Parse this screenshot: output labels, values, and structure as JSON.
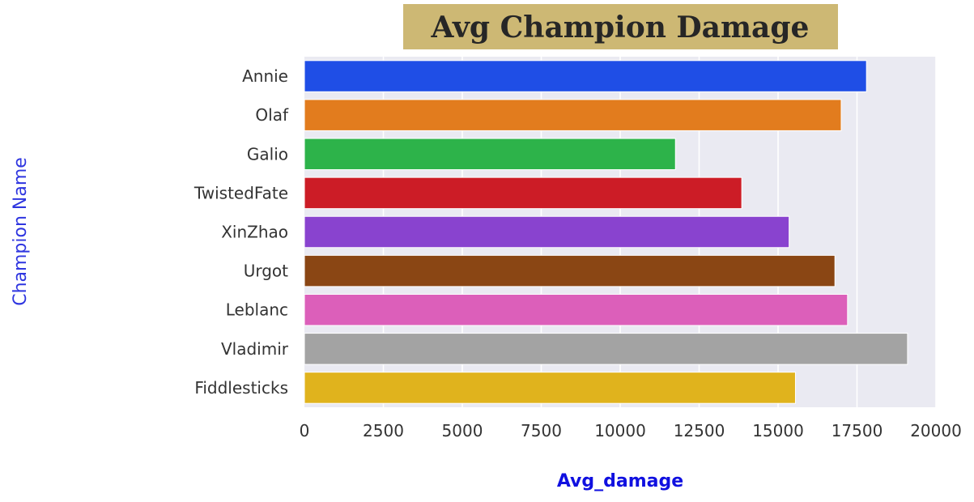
{
  "chart_data": {
    "type": "bar",
    "orientation": "horizontal",
    "title": "Avg Champion Damage",
    "xlabel": "Avg_damage",
    "ylabel": "Champion Name",
    "categories": [
      "Annie",
      "Olaf",
      "Galio",
      "TwistedFate",
      "XinZhao",
      "Urgot",
      "Leblanc",
      "Vladimir",
      "Fiddlesticks"
    ],
    "values": [
      17800,
      17000,
      11750,
      13850,
      15350,
      16800,
      17200,
      19100,
      15550
    ],
    "bar_colors": [
      "#1f4ee6",
      "#e27c1e",
      "#2db34a",
      "#cc1c26",
      "#8943cf",
      "#8a4614",
      "#dc5fba",
      "#a3a3a3",
      "#e0b31d"
    ],
    "xlim": [
      0,
      20000
    ],
    "xticks": [
      0,
      2500,
      5000,
      7500,
      10000,
      12500,
      15000,
      17500,
      20000
    ],
    "grid": true,
    "colors": {
      "plot_background": "#eaeaf2",
      "grid": "#ffffff",
      "title_background": "#cdb874",
      "title_text": "#262626",
      "xlabel": "#1010e0",
      "ylabel": "#2f36e0",
      "tick_text": "#333333"
    }
  }
}
